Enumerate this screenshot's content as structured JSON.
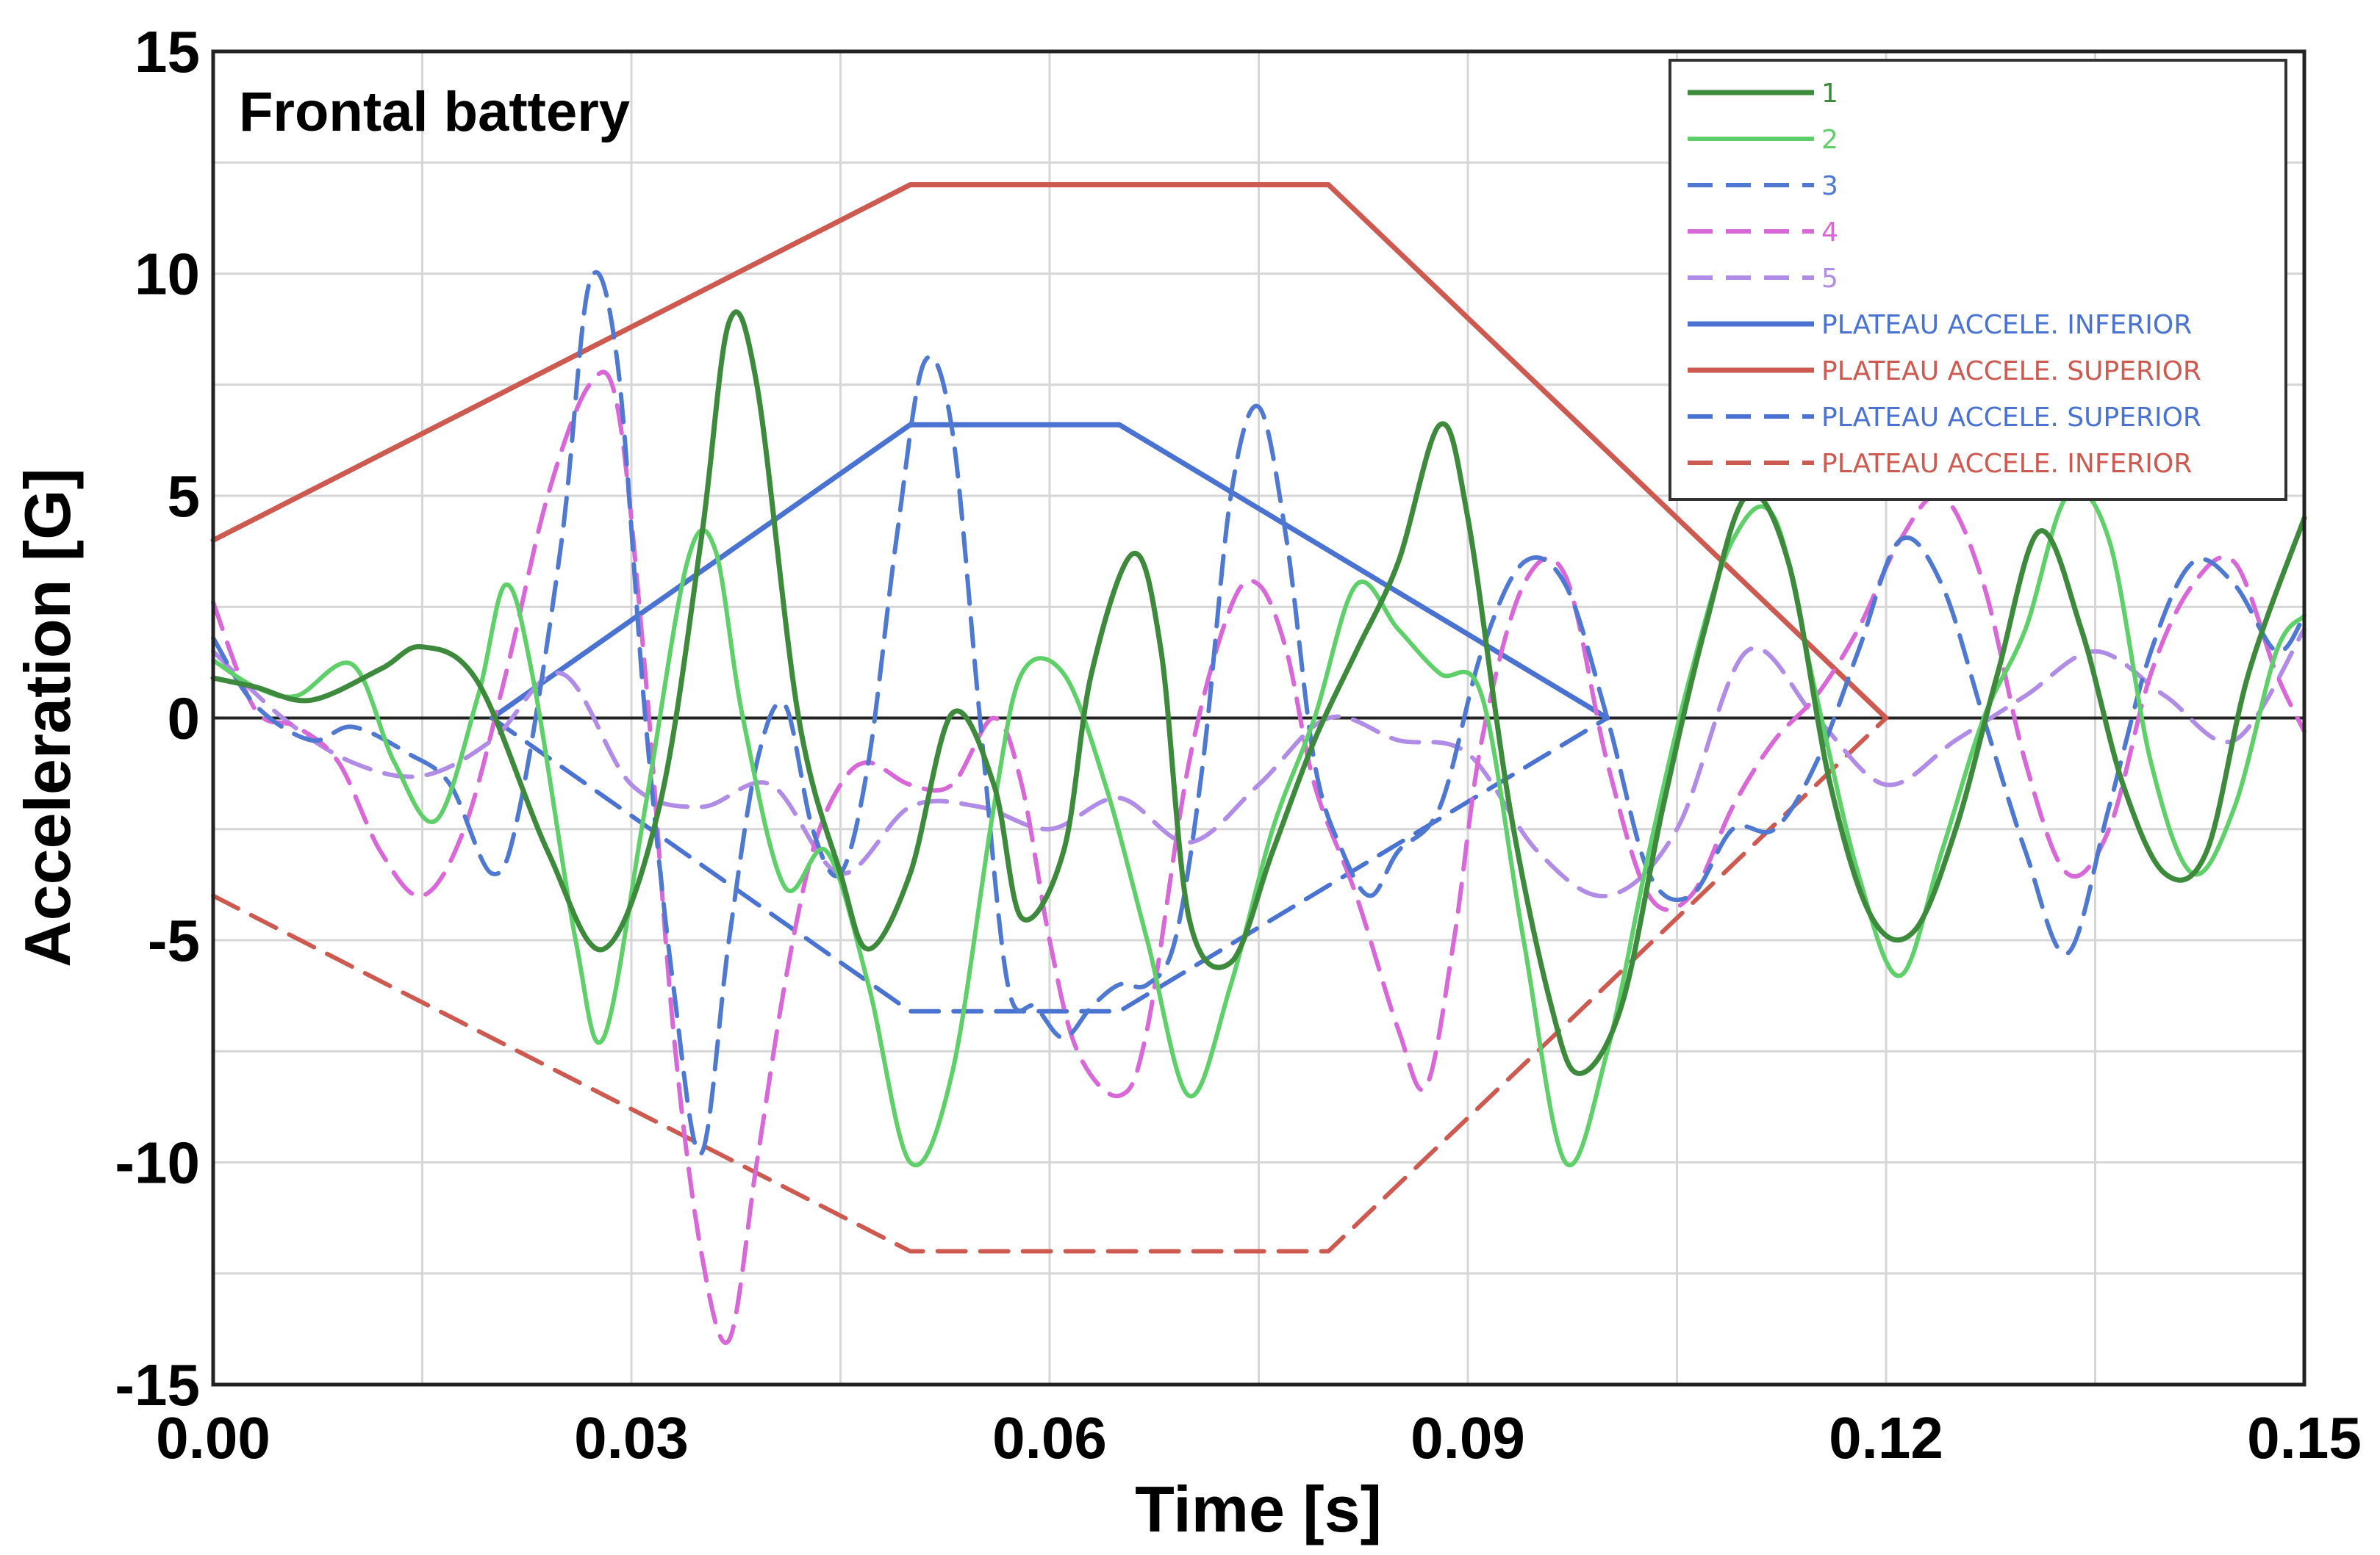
{
  "chart_data": {
    "type": "line",
    "title": "Frontal battery",
    "xlabel": "Time [s]",
    "ylabel": "Acceleration [G]",
    "xlim": [
      0,
      0.15
    ],
    "ylim": [
      -15,
      15
    ],
    "x_ticks": [
      "0.00",
      "0.03",
      "0.06",
      "0.09",
      "0.12",
      "0.15"
    ],
    "y_ticks": [
      "15",
      "10",
      "5",
      "0",
      "-5",
      "-10",
      "-15"
    ],
    "grid": true,
    "legend_position": "top-right",
    "series": [
      {
        "name": "1",
        "color": "#3d8a3d",
        "dash": "solid",
        "width": 7,
        "x": [
          0,
          0.003,
          0.007,
          0.012,
          0.015,
          0.019,
          0.024,
          0.028,
          0.032,
          0.035,
          0.037,
          0.039,
          0.042,
          0.045,
          0.047,
          0.05,
          0.053,
          0.056,
          0.058,
          0.061,
          0.063,
          0.066,
          0.068,
          0.07,
          0.073,
          0.076,
          0.079,
          0.082,
          0.085,
          0.088,
          0.09,
          0.093,
          0.096,
          0.098,
          0.101,
          0.104,
          0.107,
          0.11,
          0.113,
          0.116,
          0.119,
          0.122,
          0.125,
          0.128,
          0.131,
          0.134,
          0.137,
          0.14,
          0.143,
          0.146,
          0.15
        ],
        "y": [
          0.9,
          0.7,
          0.4,
          1.1,
          1.6,
          0.8,
          -3.0,
          -5.2,
          -2.0,
          4.0,
          8.9,
          7.5,
          0.0,
          -3.5,
          -5.2,
          -3.5,
          0.1,
          -1.5,
          -4.5,
          -3.0,
          1.0,
          3.7,
          1.5,
          -4.5,
          -5.5,
          -3.0,
          -0.5,
          1.5,
          3.5,
          6.6,
          4.5,
          -2.0,
          -6.5,
          -8.0,
          -6.5,
          -2.0,
          2.0,
          5.0,
          3.5,
          -1.5,
          -4.5,
          -4.8,
          -2.5,
          1.0,
          4.2,
          2.0,
          -1.5,
          -3.5,
          -3.0,
          1.0,
          4.5
        ]
      },
      {
        "name": "2",
        "color": "#5fcf6a",
        "dash": "solid",
        "width": 6,
        "x": [
          0,
          0.003,
          0.006,
          0.01,
          0.013,
          0.016,
          0.019,
          0.021,
          0.023,
          0.026,
          0.028,
          0.031,
          0.034,
          0.036,
          0.038,
          0.041,
          0.044,
          0.047,
          0.05,
          0.053,
          0.056,
          0.058,
          0.061,
          0.064,
          0.067,
          0.07,
          0.073,
          0.076,
          0.079,
          0.082,
          0.085,
          0.088,
          0.091,
          0.094,
          0.097,
          0.1,
          0.103,
          0.106,
          0.109,
          0.112,
          0.115,
          0.118,
          0.121,
          0.124,
          0.127,
          0.13,
          0.133,
          0.136,
          0.139,
          0.142,
          0.145,
          0.148,
          0.15
        ],
        "y": [
          1.3,
          0.7,
          0.5,
          1.2,
          -1.0,
          -2.3,
          0.5,
          3.0,
          0.8,
          -5.0,
          -7.2,
          -2.0,
          3.5,
          3.8,
          0.0,
          -3.8,
          -3.0,
          -6.0,
          -10.0,
          -8.0,
          -2.0,
          1.0,
          1.0,
          -1.5,
          -5.0,
          -8.5,
          -6.0,
          -2.5,
          0.0,
          3.0,
          2.0,
          1.0,
          0.5,
          -5.0,
          -10.0,
          -7.5,
          -3.0,
          1.0,
          4.0,
          4.5,
          0.5,
          -3.5,
          -5.8,
          -3.0,
          0.0,
          2.0,
          5.0,
          4.0,
          -1.0,
          -3.5,
          -2.0,
          1.5,
          2.3
        ]
      },
      {
        "name": "3",
        "color": "#4f79d0",
        "dash": "dashed",
        "width": 6,
        "x": [
          0,
          0.003,
          0.007,
          0.01,
          0.014,
          0.017,
          0.02,
          0.022,
          0.025,
          0.027,
          0.029,
          0.031,
          0.033,
          0.035,
          0.037,
          0.039,
          0.041,
          0.043,
          0.045,
          0.047,
          0.049,
          0.051,
          0.053,
          0.055,
          0.057,
          0.059,
          0.061,
          0.063,
          0.065,
          0.067,
          0.069,
          0.071,
          0.073,
          0.075,
          0.077,
          0.079,
          0.081,
          0.083,
          0.085,
          0.088,
          0.091,
          0.094,
          0.097,
          0.1,
          0.103,
          0.106,
          0.109,
          0.112,
          0.115,
          0.118,
          0.121,
          0.124,
          0.127,
          0.13,
          0.133,
          0.136,
          0.139,
          0.142,
          0.145,
          0.148,
          0.15
        ],
        "y": [
          1.8,
          0.3,
          -0.5,
          -0.2,
          -0.8,
          -1.5,
          -3.5,
          -2.0,
          4.0,
          9.8,
          8.0,
          0.0,
          -6.0,
          -9.8,
          -5.0,
          -1.0,
          0.3,
          -2.5,
          -3.5,
          -1.0,
          4.0,
          8.0,
          6.5,
          0.0,
          -6.0,
          -6.5,
          -7.2,
          -6.5,
          -6.0,
          -6.0,
          -5.0,
          -1.0,
          5.0,
          7.0,
          4.0,
          -1.0,
          -3.0,
          -4.0,
          -3.0,
          -2.0,
          1.5,
          3.5,
          3.0,
          0.0,
          -3.5,
          -4.0,
          -2.5,
          -2.5,
          -1.0,
          1.5,
          4.0,
          3.0,
          0.0,
          -3.0,
          -5.3,
          -2.0,
          1.5,
          3.5,
          3.0,
          1.5,
          2.3
        ]
      },
      {
        "name": "4",
        "color": "#d867d8",
        "dash": "dashed",
        "width": 6,
        "x": [
          0,
          0.003,
          0.006,
          0.009,
          0.012,
          0.015,
          0.018,
          0.021,
          0.024,
          0.027,
          0.029,
          0.031,
          0.033,
          0.035,
          0.037,
          0.039,
          0.041,
          0.043,
          0.045,
          0.047,
          0.05,
          0.053,
          0.056,
          0.058,
          0.06,
          0.062,
          0.065,
          0.067,
          0.07,
          0.073,
          0.075,
          0.077,
          0.079,
          0.082,
          0.085,
          0.087,
          0.089,
          0.091,
          0.094,
          0.097,
          0.1,
          0.103,
          0.106,
          0.109,
          0.112,
          0.115,
          0.118,
          0.121,
          0.124,
          0.127,
          0.13,
          0.133,
          0.136,
          0.139,
          0.142,
          0.145,
          0.148,
          0.15
        ],
        "y": [
          2.6,
          0.2,
          -0.2,
          -1.0,
          -3.0,
          -4.0,
          -2.5,
          1.0,
          5.0,
          7.5,
          7.0,
          1.0,
          -7.0,
          -12.0,
          -14.0,
          -10.0,
          -6.0,
          -3.0,
          -1.5,
          -1.0,
          -1.5,
          -1.5,
          0.0,
          -1.5,
          -5.0,
          -7.5,
          -8.5,
          -7.0,
          -1.0,
          2.5,
          3.0,
          1.5,
          -1.5,
          -4.0,
          -7.0,
          -8.3,
          -5.0,
          -0.5,
          3.0,
          3.2,
          -1.0,
          -4.0,
          -4.0,
          -2.0,
          -0.5,
          0.5,
          2.0,
          4.0,
          5.0,
          3.0,
          -1.0,
          -3.5,
          -2.5,
          1.0,
          3.0,
          3.5,
          1.0,
          -0.3
        ]
      },
      {
        "name": "5",
        "color": "#b08ce6",
        "dash": "dashed",
        "width": 6,
        "x": [
          0,
          0.005,
          0.01,
          0.015,
          0.02,
          0.025,
          0.03,
          0.035,
          0.04,
          0.045,
          0.05,
          0.055,
          0.06,
          0.065,
          0.07,
          0.075,
          0.08,
          0.085,
          0.09,
          0.095,
          0.1,
          0.105,
          0.11,
          0.115,
          0.12,
          0.125,
          0.13,
          0.135,
          0.14,
          0.145,
          0.15
        ],
        "y": [
          1.5,
          0.0,
          -1.0,
          -1.3,
          -0.5,
          1.0,
          -1.5,
          -2.0,
          -1.5,
          -3.5,
          -2.0,
          -2.0,
          -2.5,
          -1.8,
          -2.8,
          -1.5,
          0.0,
          -0.5,
          -0.8,
          -3.0,
          -4.0,
          -2.5,
          1.5,
          0.0,
          -1.5,
          -0.5,
          0.5,
          1.5,
          0.5,
          -0.5,
          2.0
        ]
      },
      {
        "name": "PLATEAU ACCELE. INFERIOR",
        "color": "#4a72d0",
        "dash": "solid",
        "width": 7,
        "x": [
          0.02,
          0.05,
          0.065,
          0.1
        ],
        "y": [
          0,
          6.6,
          6.6,
          0
        ]
      },
      {
        "name": "PLATEAU ACCELE. SUPERIOR",
        "color": "#cc5a50",
        "dash": "solid",
        "width": 7,
        "x": [
          0,
          0.05,
          0.08,
          0.12
        ],
        "y": [
          4,
          12,
          12,
          0
        ]
      },
      {
        "name": "PLATEAU ACCELE. SUPERIOR",
        "color": "#4a72d0",
        "dash": "dashed",
        "width": 6,
        "x": [
          0.02,
          0.05,
          0.065,
          0.1
        ],
        "y": [
          0,
          -6.6,
          -6.6,
          0
        ]
      },
      {
        "name": "PLATEAU ACCELE. INFERIOR",
        "color": "#cc5a50",
        "dash": "dashed",
        "width": 6,
        "x": [
          0,
          0.05,
          0.08,
          0.12
        ],
        "y": [
          -4,
          -12,
          -12,
          0
        ]
      }
    ]
  }
}
